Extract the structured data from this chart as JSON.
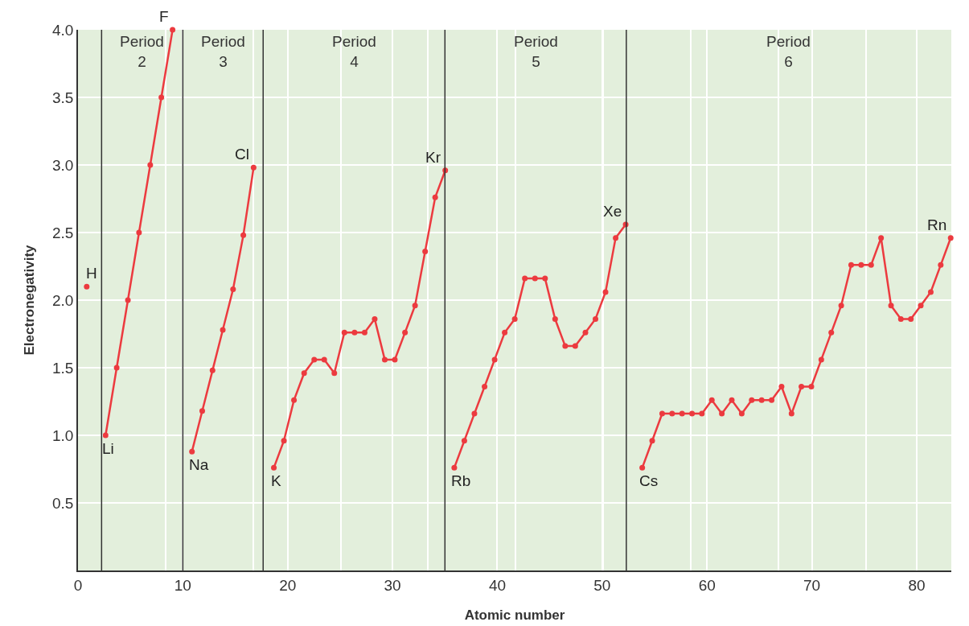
{
  "chart_data": {
    "type": "line",
    "xlabel": "Atomic number",
    "ylabel": "Electronegativity",
    "xlim": [
      0,
      83.3
    ],
    "xticks": [
      0,
      {
        "value": 8.35,
        "label": null
      },
      10,
      {
        "value": 16.7,
        "label": null
      },
      20,
      {
        "value": 25.05,
        "label": null
      },
      30,
      {
        "value": 33.4,
        "label": null
      },
      40,
      {
        "value": 41.75,
        "label": null
      },
      50,
      {
        "value": 50.1,
        "label": null
      },
      {
        "value": 58.45,
        "label": null
      },
      60,
      {
        "value": 66.8,
        "label": null
      },
      70,
      {
        "value": 75.15,
        "label": null
      },
      80
    ],
    "ylim": [
      0,
      4
    ],
    "yticks": [
      0.5,
      {
        "value": 1,
        "label": "1.0"
      },
      1.5,
      {
        "value": 2,
        "label": "2.0"
      },
      2.5,
      {
        "value": 3,
        "label": "3.0"
      },
      3.5,
      {
        "value": 4,
        "label": "4.0"
      }
    ],
    "grid": true,
    "marker": "circle",
    "line_style": "solid",
    "series": [
      {
        "color": "#ec3a3f",
        "x": [
          0.83
        ],
        "values": [
          2.1
        ]
      },
      {
        "color": "#ec3a3f",
        "x": [
          2.63,
          3.69,
          4.76,
          5.82,
          6.89,
          7.95,
          9.02
        ],
        "values": [
          1.0,
          1.5,
          2.0,
          2.5,
          3.0,
          3.5,
          4.0
        ]
      },
      {
        "color": "#ec3a3f",
        "x": [
          10.87,
          11.85,
          12.83,
          13.81,
          14.79,
          15.77,
          16.75
        ],
        "values": [
          0.88,
          1.18,
          1.48,
          1.78,
          2.08,
          2.48,
          2.98
        ]
      },
      {
        "color": "#ec3a3f",
        "x": [
          18.68,
          19.64,
          20.6,
          21.57,
          22.53,
          23.49,
          24.45,
          25.41,
          26.38,
          27.34,
          28.3,
          29.26,
          30.22,
          31.19,
          32.15,
          33.11,
          34.07,
          35.03
        ],
        "values": [
          0.76,
          0.96,
          1.26,
          1.46,
          1.56,
          1.56,
          1.46,
          1.76,
          1.76,
          1.76,
          1.86,
          1.56,
          1.56,
          1.76,
          1.96,
          2.36,
          2.76,
          2.96
        ]
      },
      {
        "color": "#ec3a3f",
        "x": [
          35.89,
          36.85,
          37.81,
          38.78,
          39.74,
          40.7,
          41.66,
          42.62,
          43.59,
          44.55,
          45.51,
          46.47,
          47.43,
          48.4,
          49.36,
          50.32,
          51.28,
          52.24
        ],
        "values": [
          0.76,
          0.96,
          1.16,
          1.36,
          1.56,
          1.76,
          1.86,
          2.16,
          2.16,
          2.16,
          1.86,
          1.66,
          1.66,
          1.76,
          1.86,
          2.06,
          2.46,
          2.56
        ]
      },
      {
        "color": "#ec3a3f",
        "x": [
          53.82,
          54.77,
          55.72,
          56.67,
          57.62,
          58.57,
          59.51,
          60.46,
          61.41,
          62.36,
          63.31,
          64.26,
          65.21,
          66.16,
          67.11,
          68.06,
          69.0,
          69.95,
          70.9,
          71.85,
          72.8,
          73.75,
          74.7,
          75.65,
          76.6,
          77.55,
          78.49,
          79.44,
          80.39,
          81.34,
          82.29,
          83.24
        ],
        "values": [
          0.76,
          0.96,
          1.16,
          1.16,
          1.16,
          1.16,
          1.16,
          1.26,
          1.16,
          1.26,
          1.16,
          1.26,
          1.26,
          1.26,
          1.36,
          1.16,
          1.36,
          1.36,
          1.56,
          1.76,
          1.96,
          2.26,
          2.26,
          2.26,
          2.46,
          1.96,
          1.86,
          1.86,
          1.96,
          2.06,
          2.26,
          2.46
        ]
      }
    ],
    "ref_lines": [
      {
        "axis": "x",
        "value": 2.25
      },
      {
        "axis": "x",
        "value": 10
      },
      {
        "axis": "x",
        "value": 17.66
      },
      {
        "axis": "x",
        "value": 35
      },
      {
        "axis": "x",
        "value": 52.3
      }
    ],
    "annotations": [
      "Period\n2",
      "Period\n3",
      "Period\n4",
      "Period\n5",
      "Period\n6",
      {
        "text": "H",
        "x": 0.83,
        "y": 2.1
      },
      {
        "text": "Li",
        "x": 2.63,
        "y": 1.0
      },
      {
        "text": "F",
        "x": 9.02,
        "y": 4.0
      },
      {
        "text": "Na",
        "x": 10.87,
        "y": 0.88
      },
      {
        "text": "Cl",
        "x": 16.75,
        "y": 2.98
      },
      {
        "text": "K",
        "x": 18.68,
        "y": 0.76
      },
      {
        "text": "Kr",
        "x": 35.03,
        "y": 2.96
      },
      {
        "text": "Rb",
        "x": 35.89,
        "y": 0.76
      },
      {
        "text": "Xe",
        "x": 52.24,
        "y": 2.56
      },
      {
        "text": "Cs",
        "x": 53.82,
        "y": 0.76
      },
      {
        "text": "Rn",
        "x": 83.24,
        "y": 2.46
      }
    ]
  }
}
